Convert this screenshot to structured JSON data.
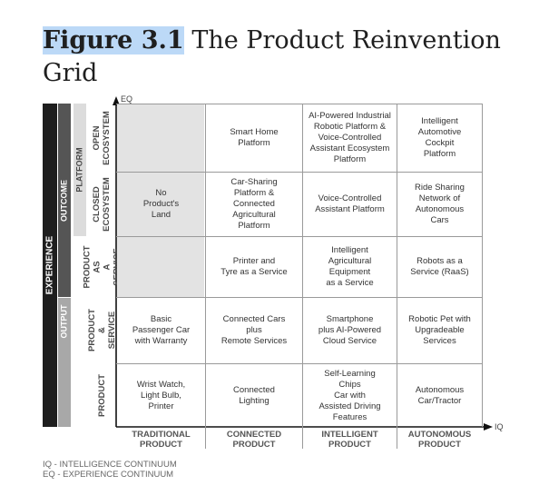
{
  "figure": {
    "label": "Figure 3.1",
    "title": "The Product Reinvention Grid"
  },
  "axes": {
    "y_label": "EQ",
    "x_label": "IQ"
  },
  "groups": {
    "experience": "EXPERIENCE",
    "outcome": "OUTCOME",
    "output": "OUTPUT",
    "platform": "PLATFORM"
  },
  "rows": [
    "OPEN\nECOSYSTEM",
    "CLOSED\nECOSYSTEM",
    "PRODUCT AS\nA SERVICE",
    "PRODUCT &\nSERVICE",
    "PRODUCT"
  ],
  "columns": [
    "TRADITIONAL\nPRODUCT",
    "CONNECTED\nPRODUCT",
    "INTELLIGENT\nPRODUCT",
    "AUTONOMOUS\nPRODUCT"
  ],
  "cells": {
    "r0": [
      "",
      "Smart Home\nPlatform",
      "AI-Powered Industrial\nRobotic Platform &\nVoice-Controlled\nAssistant Ecosystem\nPlatform",
      "Intelligent\nAutomotive\nCockpit\nPlatform"
    ],
    "r1": [
      "No\nProduct's\nLand",
      "Car-Sharing\nPlatform &\nConnected\nAgricultural\nPlatform",
      "Voice-Controlled\nAssistant Platform",
      "Ride Sharing\nNetwork of\nAutonomous\nCars"
    ],
    "r2": [
      "",
      "Printer and\nTyre as a Service",
      "Intelligent\nAgricultural\nEquipment\nas a Service",
      "Robots as a\nService (RaaS)"
    ],
    "r3": [
      "Basic\nPassenger Car\nwith Warranty",
      "Connected Cars\nplus\nRemote Services",
      "Smartphone\nplus AI-Powered\nCloud Service",
      "Robotic Pet with\nUpgradeable\nServices"
    ],
    "r4": [
      "Wrist Watch,\nLight Bulb,\nPrinter",
      "Connected\nLighting",
      "Self-Learning\nChips\nCar with\nAssisted Driving\nFeatures",
      "Autonomous\nCar/Tractor"
    ]
  },
  "legend": {
    "iq": "IQ - INTELLIGENCE CONTINUUM",
    "eq": "EQ - EXPERIENCE CONTINUUM"
  },
  "colors": {
    "experience_bar": "#1e1e1e",
    "outcome_bar": "#555555",
    "output_bar": "#a8a8a8",
    "platform_bar": "#dcdcdc",
    "shaded_cell": "#e3e3e3",
    "title_highlight": "#bcd9f7"
  }
}
